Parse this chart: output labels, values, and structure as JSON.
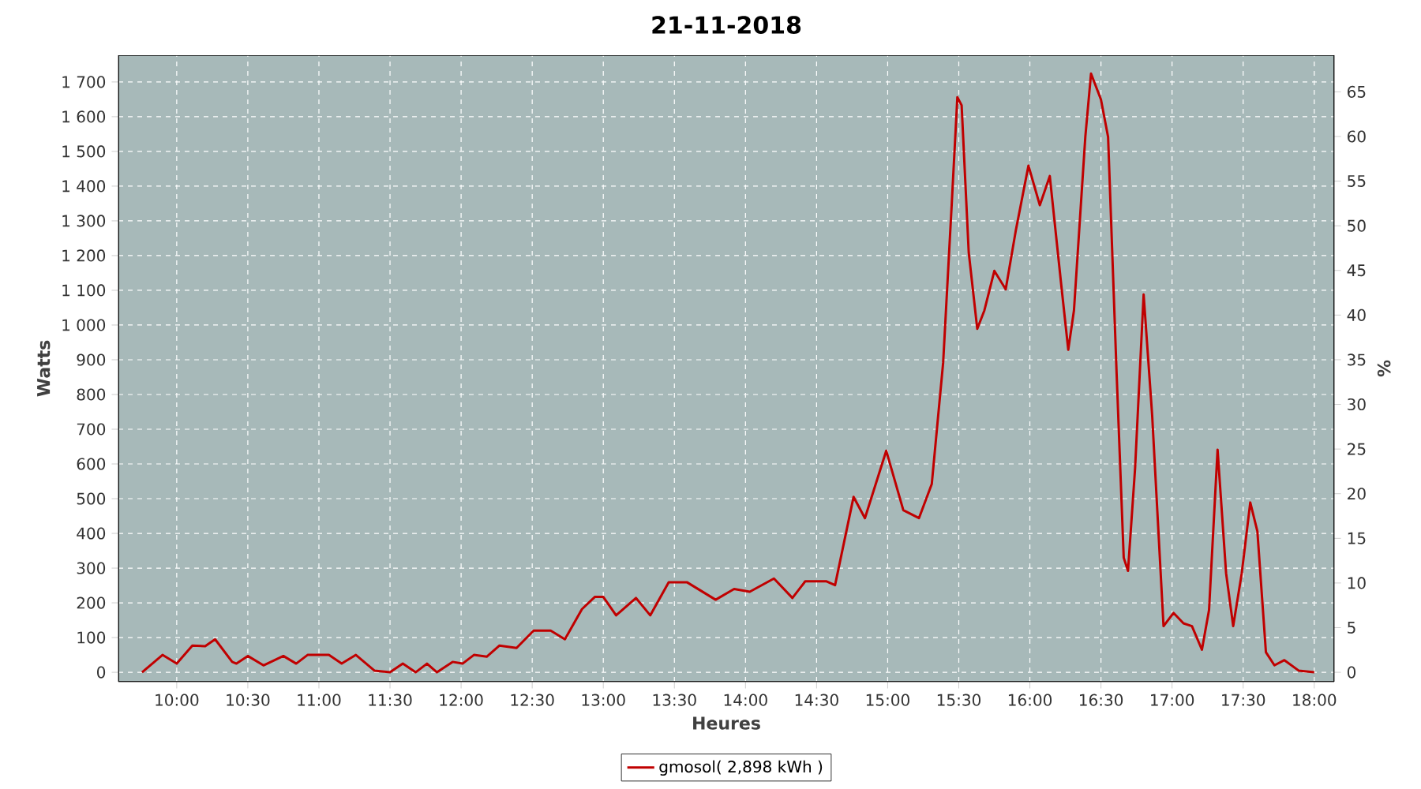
{
  "chart_data": {
    "type": "line",
    "title": "21-11-2018",
    "xlabel": "Heures",
    "ylabel": "Watts",
    "y2label": "%",
    "x": [
      9.756,
      9.9,
      10.0,
      10.11,
      10.2,
      10.27,
      10.39,
      10.42,
      10.5,
      10.61,
      10.75,
      10.84,
      10.92,
      11.07,
      11.16,
      11.26,
      11.39,
      11.5,
      11.59,
      11.68,
      11.76,
      11.83,
      11.94,
      12.01,
      12.09,
      12.18,
      12.27,
      12.39,
      12.51,
      12.63,
      12.73,
      12.85,
      12.94,
      13.0,
      13.09,
      13.23,
      13.33,
      13.46,
      13.59,
      13.79,
      13.92,
      14.03,
      14.2,
      14.33,
      14.42,
      14.57,
      14.63,
      14.76,
      14.84,
      14.99,
      15.11,
      15.22,
      15.31,
      15.39,
      15.45,
      15.49,
      15.52,
      15.57,
      15.63,
      15.68,
      15.75,
      15.83,
      15.9,
      15.99,
      16.07,
      16.14,
      16.22,
      16.27,
      16.31,
      16.39,
      16.43,
      16.5,
      16.55,
      16.61,
      16.66,
      16.69,
      16.74,
      16.8,
      16.86,
      16.94,
      17.01,
      17.08,
      17.14,
      17.21,
      17.26,
      17.32,
      17.38,
      17.43,
      17.49,
      17.55,
      17.6,
      17.66,
      17.72,
      17.79,
      17.89,
      18.0
    ],
    "series": [
      {
        "name": "gmosol( 2,898 kWh )",
        "color": "#c00000",
        "values": [
          0,
          50,
          25,
          77,
          75,
          95,
          30,
          25,
          47,
          20,
          47,
          25,
          50,
          50,
          25,
          50,
          5,
          0,
          25,
          0,
          25,
          0,
          30,
          25,
          50,
          45,
          77,
          70,
          120,
          120,
          95,
          182,
          217,
          217,
          164,
          214,
          164,
          259,
          259,
          209,
          240,
          232,
          270,
          214,
          262,
          262,
          251,
          505,
          444,
          638,
          467,
          444,
          542,
          891,
          1345,
          1656,
          1633,
          1209,
          989,
          1042,
          1156,
          1103,
          1270,
          1459,
          1345,
          1429,
          1118,
          929,
          1042,
          1542,
          1724,
          1649,
          1542,
          861,
          330,
          292,
          588,
          1088,
          740,
          133,
          171,
          141,
          133,
          65,
          179,
          641,
          285,
          133,
          285,
          489,
          406,
          58,
          20,
          35,
          5,
          0
        ]
      }
    ],
    "xlim": [
      9.59,
      18.14
    ],
    "ylim": [
      -27,
      1777
    ],
    "y2lim": [
      -1.05,
      69.1
    ],
    "xticks": [
      {
        "value": 10,
        "label": "10:00"
      },
      {
        "value": 10.5,
        "label": "10:30"
      },
      {
        "value": 11,
        "label": "11:00"
      },
      {
        "value": 11.5,
        "label": "11:30"
      },
      {
        "value": 12,
        "label": "12:00"
      },
      {
        "value": 12.5,
        "label": "12:30"
      },
      {
        "value": 13,
        "label": "13:00"
      },
      {
        "value": 13.5,
        "label": "13:30"
      },
      {
        "value": 14,
        "label": "14:00"
      },
      {
        "value": 14.5,
        "label": "14:30"
      },
      {
        "value": 15,
        "label": "15:00"
      },
      {
        "value": 15.5,
        "label": "15:30"
      },
      {
        "value": 16,
        "label": "16:00"
      },
      {
        "value": 16.5,
        "label": "16:30"
      },
      {
        "value": 17,
        "label": "17:00"
      },
      {
        "value": 17.5,
        "label": "17:30"
      },
      {
        "value": 18,
        "label": "18:00"
      }
    ],
    "yticks": [
      0,
      100,
      200,
      300,
      400,
      500,
      600,
      700,
      800,
      900,
      {
        "value": 1000,
        "label": "1 000"
      },
      {
        "value": 1100,
        "label": "1 100"
      },
      {
        "value": 1200,
        "label": "1 200"
      },
      {
        "value": 1300,
        "label": "1 300"
      },
      {
        "value": 1400,
        "label": "1 400"
      },
      {
        "value": 1500,
        "label": "1 500"
      },
      {
        "value": 1600,
        "label": "1 600"
      },
      {
        "value": 1700,
        "label": "1 700"
      }
    ],
    "y2ticks": [
      0,
      5,
      10,
      15,
      20,
      25,
      30,
      35,
      40,
      45,
      50,
      55,
      60,
      65
    ],
    "grid": true,
    "legend": "bottom",
    "marker": "none",
    "line_style": "solid"
  }
}
